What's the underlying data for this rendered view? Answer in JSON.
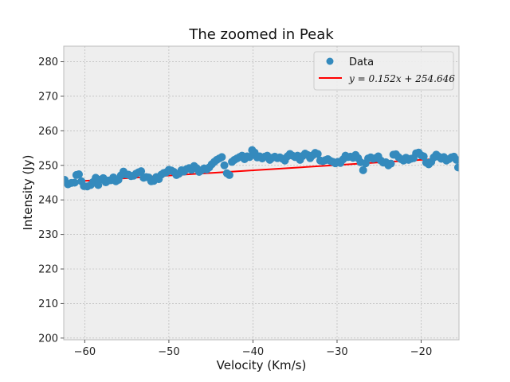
{
  "chart_data": {
    "type": "scatter",
    "title": "The zoomed in Peak",
    "xlabel": "Velocity (Km/s)",
    "ylabel": "Intensity (Jy)",
    "xlim": [
      -62.5,
      -15.5
    ],
    "ylim": [
      199.5,
      284.5
    ],
    "xticks": [
      -60,
      -50,
      -40,
      -30,
      -20
    ],
    "yticks": [
      200,
      210,
      220,
      230,
      240,
      250,
      260,
      270,
      280
    ],
    "grid": true,
    "legend_position": "top-right",
    "colors": {
      "data": "#348abd",
      "fit": "#ff0000",
      "axes_bg": "#eeeeee",
      "grid": "#b0b0b0"
    },
    "series": [
      {
        "name": "Data",
        "kind": "scatter",
        "points": [
          [
            -62.4,
            245.8
          ],
          [
            -62.0,
            244.5
          ],
          [
            -61.6,
            244.9
          ],
          [
            -61.2,
            245.0
          ],
          [
            -61.0,
            247.2
          ],
          [
            -60.7,
            247.4
          ],
          [
            -60.4,
            245.4
          ],
          [
            -60.1,
            244.0
          ],
          [
            -59.7,
            243.9
          ],
          [
            -59.3,
            244.3
          ],
          [
            -59.0,
            245.2
          ],
          [
            -58.7,
            246.4
          ],
          [
            -58.4,
            244.3
          ],
          [
            -58.1,
            245.9
          ],
          [
            -57.8,
            246.3
          ],
          [
            -57.5,
            245.1
          ],
          [
            -57.2,
            245.6
          ],
          [
            -56.9,
            245.7
          ],
          [
            -56.6,
            246.5
          ],
          [
            -56.3,
            245.4
          ],
          [
            -56.0,
            245.8
          ],
          [
            -55.7,
            247.1
          ],
          [
            -55.4,
            248.2
          ],
          [
            -55.1,
            247.4
          ],
          [
            -54.8,
            247.3
          ],
          [
            -54.5,
            246.9
          ],
          [
            -54.2,
            247.0
          ],
          [
            -53.9,
            247.6
          ],
          [
            -53.6,
            248.0
          ],
          [
            -53.3,
            248.3
          ],
          [
            -53.0,
            246.4
          ],
          [
            -52.7,
            246.6
          ],
          [
            -52.4,
            246.5
          ],
          [
            -52.1,
            245.4
          ],
          [
            -51.8,
            245.5
          ],
          [
            -51.5,
            246.6
          ],
          [
            -51.2,
            246.0
          ],
          [
            -50.9,
            247.3
          ],
          [
            -50.6,
            247.8
          ],
          [
            -50.3,
            248.0
          ],
          [
            -50.0,
            248.7
          ],
          [
            -49.7,
            248.5
          ],
          [
            -49.4,
            248.1
          ],
          [
            -49.1,
            247.2
          ],
          [
            -48.8,
            247.6
          ],
          [
            -48.5,
            248.6
          ],
          [
            -48.2,
            248.2
          ],
          [
            -47.9,
            248.9
          ],
          [
            -47.6,
            249.2
          ],
          [
            -47.3,
            248.7
          ],
          [
            -47.0,
            249.8
          ],
          [
            -46.7,
            249.2
          ],
          [
            -46.4,
            248.1
          ],
          [
            -46.1,
            248.6
          ],
          [
            -45.8,
            249.1
          ],
          [
            -45.5,
            248.8
          ],
          [
            -45.2,
            249.4
          ],
          [
            -44.9,
            250.3
          ],
          [
            -44.6,
            251.0
          ],
          [
            -44.3,
            251.6
          ],
          [
            -44.0,
            252.0
          ],
          [
            -43.7,
            252.4
          ],
          [
            -43.4,
            250.0
          ],
          [
            -43.1,
            247.7
          ],
          [
            -42.8,
            247.2
          ],
          [
            -42.5,
            251.0
          ],
          [
            -42.2,
            251.6
          ],
          [
            -41.9,
            252.0
          ],
          [
            -41.6,
            252.4
          ],
          [
            -41.3,
            252.8
          ],
          [
            -41.0,
            251.8
          ],
          [
            -40.7,
            252.6
          ],
          [
            -40.4,
            252.4
          ],
          [
            -40.1,
            254.4
          ],
          [
            -39.8,
            253.7
          ],
          [
            -39.5,
            252.3
          ],
          [
            -39.2,
            252.6
          ],
          [
            -38.9,
            252.0
          ],
          [
            -38.6,
            252.5
          ],
          [
            -38.3,
            252.8
          ],
          [
            -38.0,
            251.6
          ],
          [
            -37.7,
            252.2
          ],
          [
            -37.4,
            252.5
          ],
          [
            -37.1,
            252.1
          ],
          [
            -36.8,
            252.3
          ],
          [
            -36.5,
            251.9
          ],
          [
            -36.2,
            251.4
          ],
          [
            -35.9,
            252.6
          ],
          [
            -35.6,
            253.3
          ],
          [
            -35.3,
            252.8
          ],
          [
            -35.0,
            252.4
          ],
          [
            -34.7,
            252.8
          ],
          [
            -34.4,
            251.6
          ],
          [
            -34.1,
            252.7
          ],
          [
            -33.8,
            253.4
          ],
          [
            -33.5,
            253.0
          ],
          [
            -33.2,
            252.1
          ],
          [
            -32.9,
            252.9
          ],
          [
            -32.6,
            253.6
          ],
          [
            -32.3,
            253.3
          ],
          [
            -32.0,
            251.4
          ],
          [
            -31.7,
            251.2
          ],
          [
            -31.4,
            251.5
          ],
          [
            -31.1,
            251.8
          ],
          [
            -30.8,
            251.3
          ],
          [
            -30.5,
            251.0
          ],
          [
            -30.2,
            250.6
          ],
          [
            -29.9,
            251.0
          ],
          [
            -29.6,
            250.7
          ],
          [
            -29.3,
            251.7
          ],
          [
            -29.0,
            252.8
          ],
          [
            -28.7,
            252.4
          ],
          [
            -28.4,
            252.5
          ],
          [
            -28.1,
            252.2
          ],
          [
            -27.8,
            253.0
          ],
          [
            -27.5,
            252.1
          ],
          [
            -27.2,
            250.9
          ],
          [
            -26.9,
            248.6
          ],
          [
            -26.6,
            250.6
          ],
          [
            -26.3,
            252.0
          ],
          [
            -26.0,
            252.3
          ],
          [
            -25.7,
            251.9
          ],
          [
            -25.4,
            252.1
          ],
          [
            -25.1,
            252.6
          ],
          [
            -24.8,
            251.4
          ],
          [
            -24.5,
            250.8
          ],
          [
            -24.2,
            250.9
          ],
          [
            -23.9,
            250.0
          ],
          [
            -23.6,
            250.5
          ],
          [
            -23.3,
            253.1
          ],
          [
            -23.0,
            253.2
          ],
          [
            -22.7,
            252.4
          ],
          [
            -22.4,
            251.8
          ],
          [
            -22.1,
            251.4
          ],
          [
            -21.8,
            252.2
          ],
          [
            -21.5,
            251.6
          ],
          [
            -21.2,
            251.9
          ],
          [
            -20.9,
            252.1
          ],
          [
            -20.6,
            253.5
          ],
          [
            -20.3,
            253.7
          ],
          [
            -20.0,
            252.9
          ],
          [
            -19.7,
            252.6
          ],
          [
            -19.4,
            250.8
          ],
          [
            -19.1,
            250.3
          ],
          [
            -18.8,
            251.0
          ],
          [
            -18.5,
            252.3
          ],
          [
            -18.2,
            253.1
          ],
          [
            -17.9,
            252.5
          ],
          [
            -17.6,
            251.9
          ],
          [
            -17.3,
            252.4
          ],
          [
            -17.0,
            251.4
          ],
          [
            -16.7,
            251.8
          ],
          [
            -16.4,
            252.3
          ],
          [
            -16.1,
            252.5
          ],
          [
            -15.8,
            251.6
          ],
          [
            -15.6,
            249.4
          ]
        ]
      },
      {
        "name": "y = 0.152x + 254.646",
        "kind": "line",
        "slope": 0.152,
        "intercept": 254.646,
        "x_range": [
          -62.5,
          -15.5
        ]
      }
    ]
  }
}
